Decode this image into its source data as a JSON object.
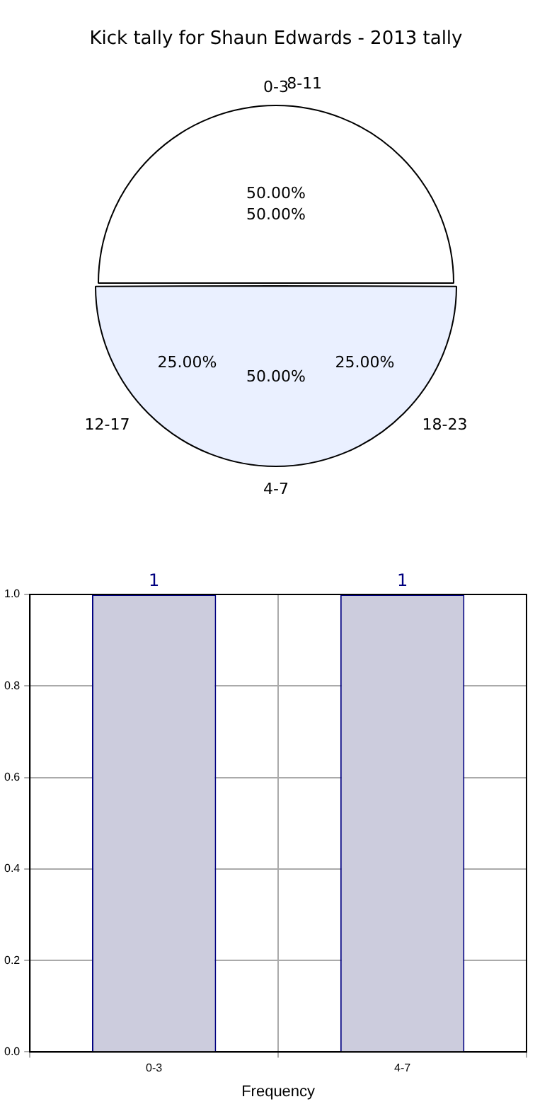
{
  "chart_data": [
    {
      "type": "pie",
      "title": "Kick tally for Shaun Edwards - 2013 tally",
      "categories": [
        "0-3",
        "4-7"
      ],
      "values": [
        50,
        50
      ],
      "colors": [
        "#ffffff",
        "#eaf0ff"
      ],
      "value_labels": [
        "50.00%",
        "50.00%"
      ],
      "annotations": [
        "8-11",
        "50.00%",
        "12-17",
        "25.00%",
        "18-23",
        "25.00%"
      ]
    },
    {
      "type": "bar",
      "xlabel": "Frequency",
      "categories": [
        "0-3",
        "4-7"
      ],
      "values": [
        1,
        1
      ],
      "color": "#ccccdd",
      "data_labels": true,
      "ylim": [
        0,
        1
      ],
      "yticks": [
        {
          "value": 0,
          "label": "0.0"
        },
        {
          "value": 0.2,
          "label": "0.2"
        },
        {
          "value": 0.4,
          "label": "0.4"
        },
        {
          "value": 0.6,
          "label": "0.6"
        },
        {
          "value": 0.8,
          "label": "0.8"
        },
        {
          "value": 1,
          "label": "1.0"
        }
      ],
      "grid": true
    }
  ]
}
